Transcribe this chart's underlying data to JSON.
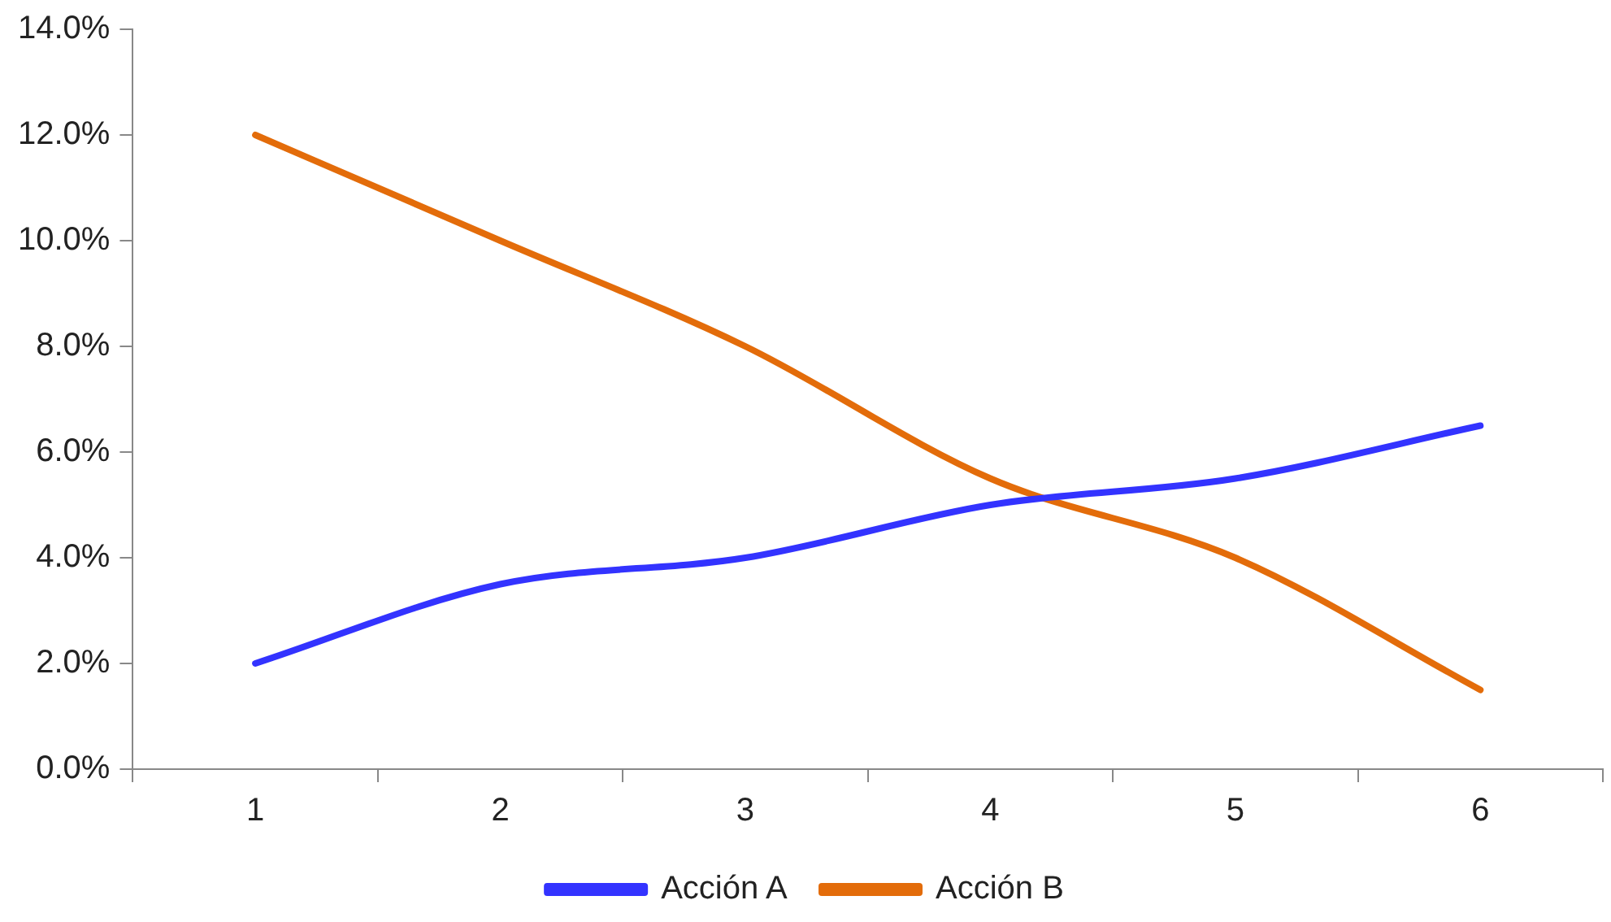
{
  "chart_data": {
    "type": "line",
    "categories": [
      "1",
      "2",
      "3",
      "4",
      "5",
      "6"
    ],
    "series": [
      {
        "name": "Acción A",
        "color": "#3333ff",
        "values": [
          2.0,
          3.5,
          4.0,
          5.0,
          5.5,
          6.5
        ]
      },
      {
        "name": "Acción B",
        "color": "#e36c0a",
        "values": [
          12.0,
          10.0,
          8.0,
          5.5,
          4.0,
          1.5
        ]
      }
    ],
    "ylim": [
      0,
      14
    ],
    "yticks": [
      {
        "value": 0,
        "label": "0.0%"
      },
      {
        "value": 2,
        "label": "2.0%"
      },
      {
        "value": 4,
        "label": "4.0%"
      },
      {
        "value": 6,
        "label": "6.0%"
      },
      {
        "value": 8,
        "label": "8.0%"
      },
      {
        "value": 10,
        "label": "10.0%"
      },
      {
        "value": 12,
        "label": "12.0%"
      },
      {
        "value": 14,
        "label": "14.0%"
      }
    ],
    "grid": false,
    "legend": "bottom",
    "marker": "none",
    "line_style": "solid"
  }
}
